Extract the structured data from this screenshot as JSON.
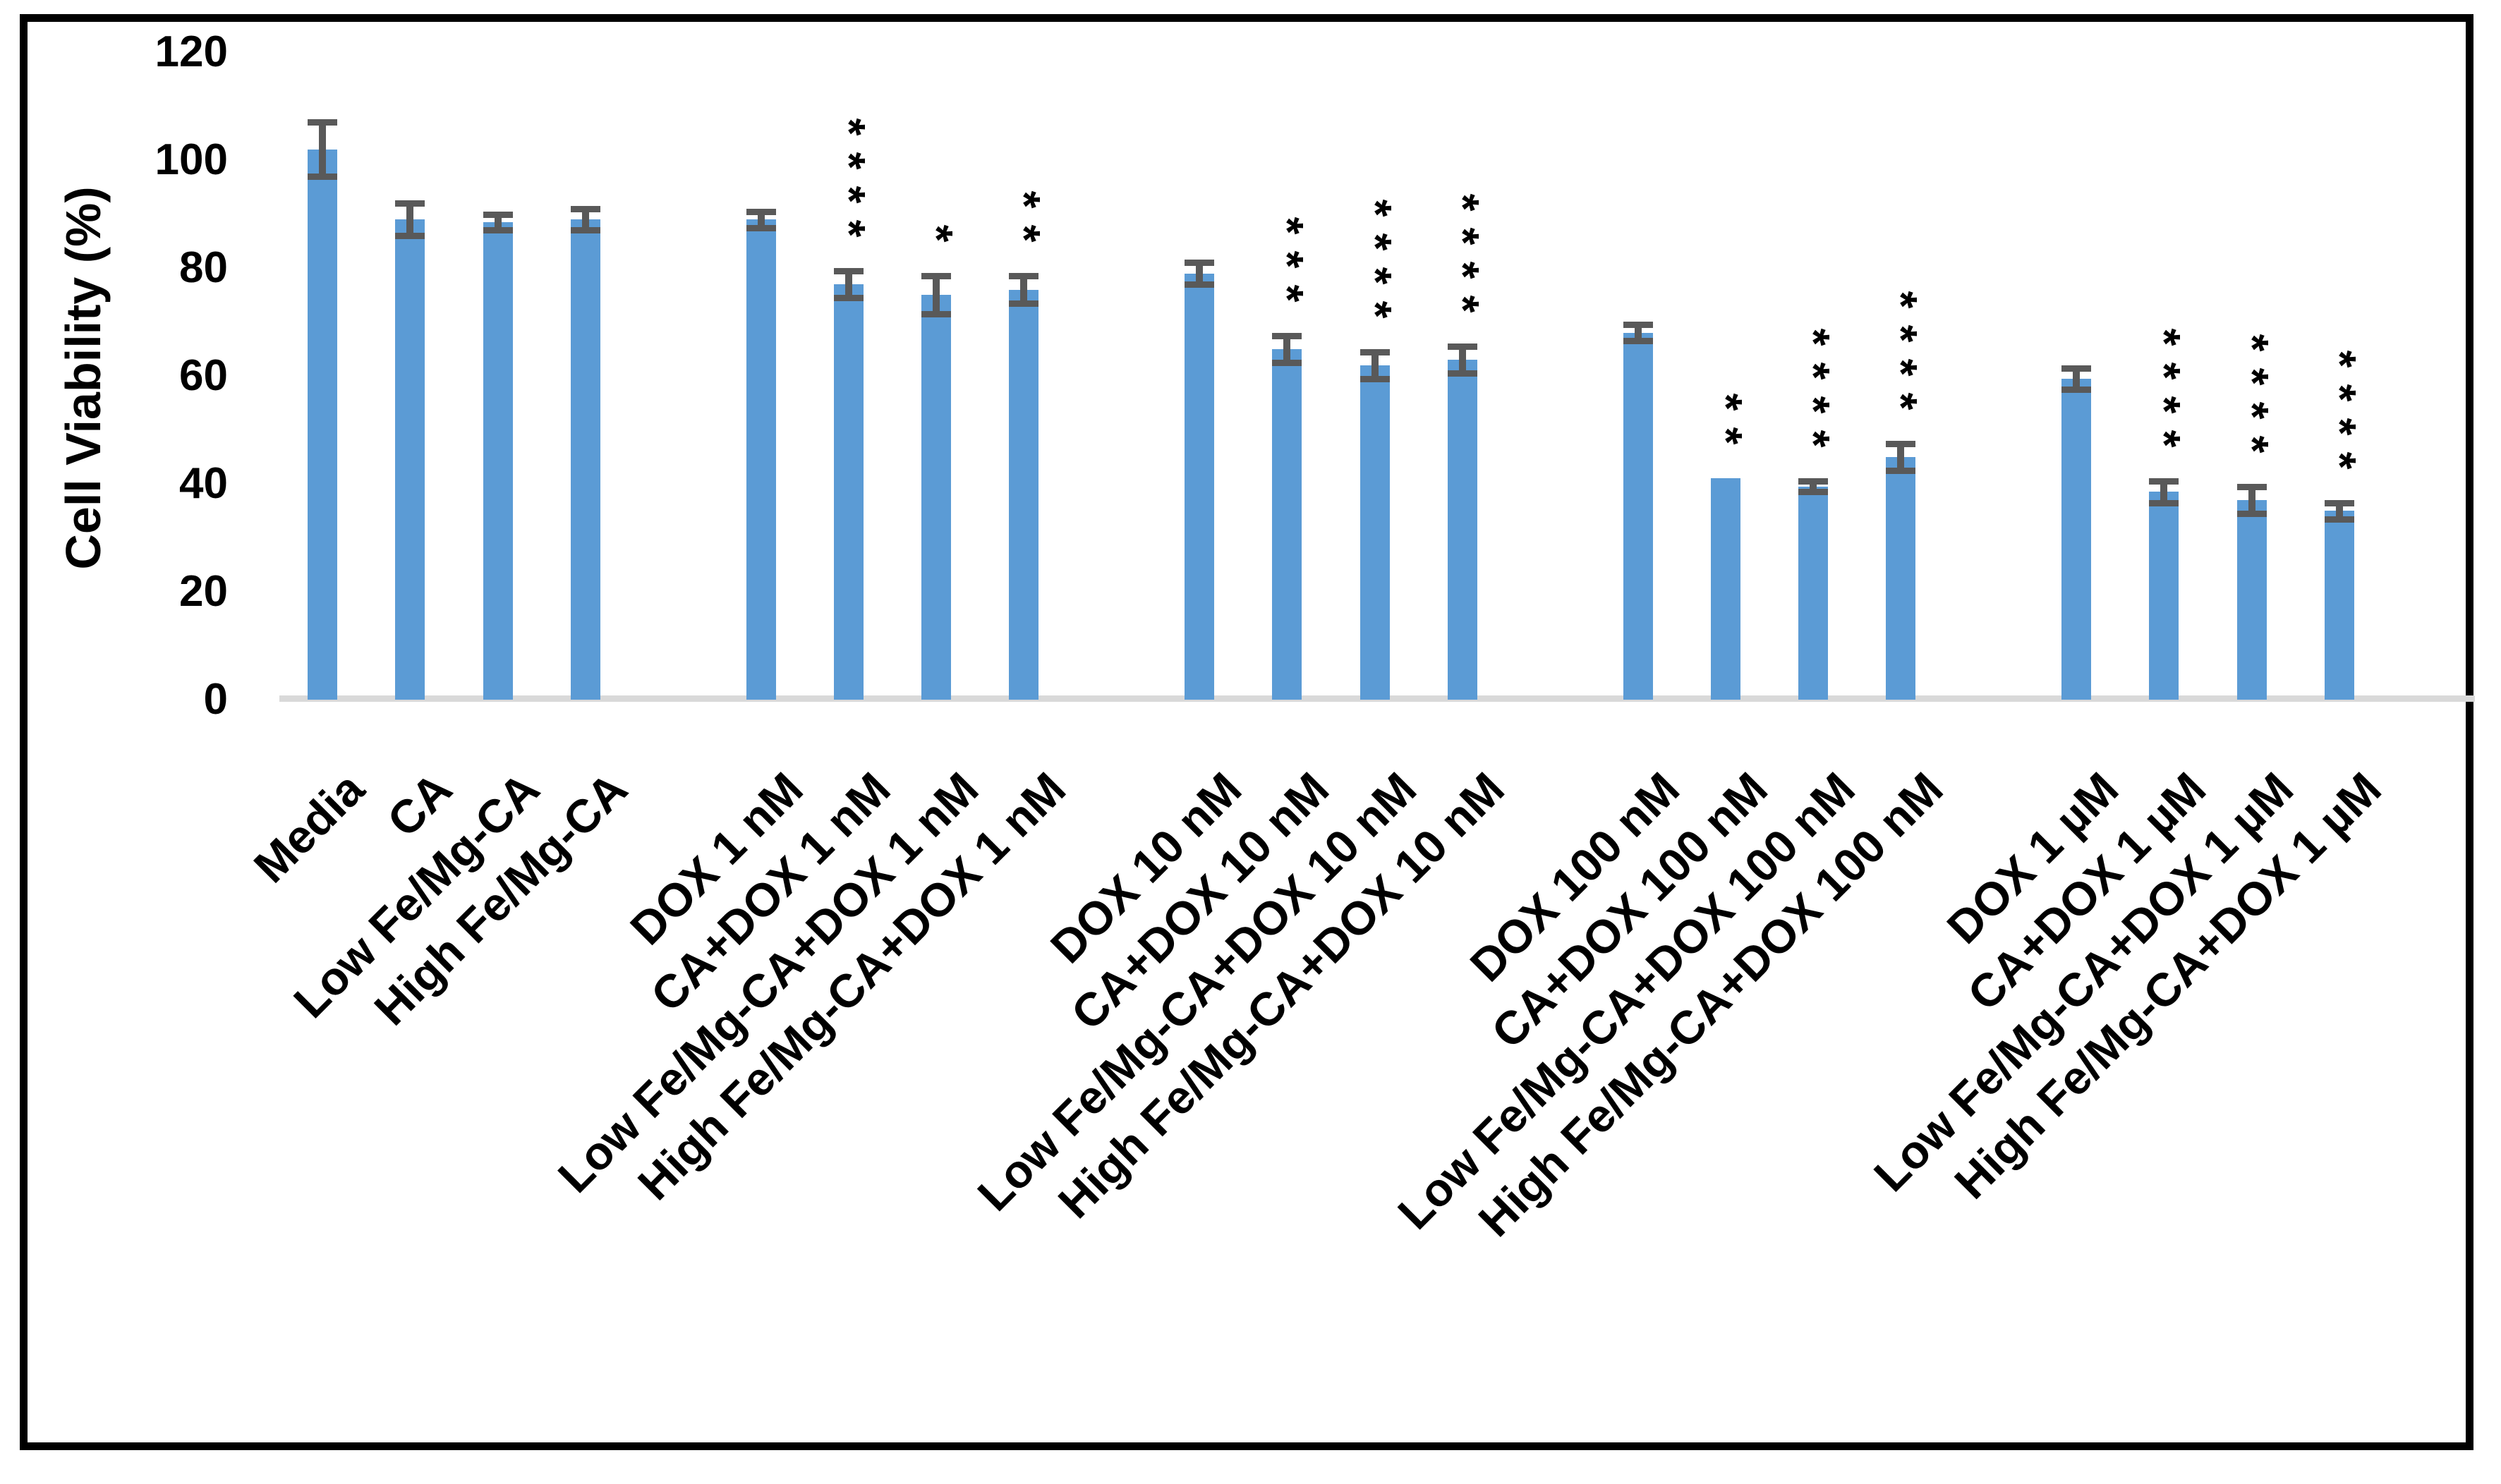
{
  "chart_data": {
    "type": "bar",
    "title": "",
    "xlabel": "",
    "ylabel": "Cell Viability (%)",
    "ylim": [
      0,
      120
    ],
    "yticks": [
      0,
      20,
      40,
      60,
      80,
      100,
      120
    ],
    "grid": "off",
    "legend": "none",
    "bar_color": "#5B9BD5",
    "error_bar_color": "#595959",
    "baseline_color": "#D9D9D9",
    "significance_symbol": "*",
    "groups": [
      {
        "name": "controls",
        "bars": [
          {
            "label": "Media",
            "value": 102,
            "error": 5,
            "stars": ""
          },
          {
            "label": "CA",
            "value": 89,
            "error": 3,
            "stars": ""
          },
          {
            "label": "Low Fe/Mg-CA",
            "value": 88.5,
            "error": 1.5,
            "stars": ""
          },
          {
            "label": "High Fe/Mg-CA",
            "value": 89,
            "error": 2,
            "stars": ""
          }
        ]
      },
      {
        "name": "dox-1nM",
        "bars": [
          {
            "label": "DOX 1 nM",
            "value": 89,
            "error": 1.5,
            "stars": ""
          },
          {
            "label": "CA+DOX 1 nM",
            "value": 77,
            "error": 2.5,
            "stars": "****"
          },
          {
            "label": "Low Fe/Mg-CA+DOX 1 nM",
            "value": 75,
            "error": 3.5,
            "stars": "*"
          },
          {
            "label": "High Fe/Mg-CA+DOX 1 nM",
            "value": 76,
            "error": 2.5,
            "stars": "**"
          }
        ]
      },
      {
        "name": "dox-10nM",
        "bars": [
          {
            "label": "DOX 10 nM",
            "value": 79,
            "error": 2,
            "stars": ""
          },
          {
            "label": "CA+DOX 10 nM",
            "value": 65,
            "error": 2.5,
            "stars": "***"
          },
          {
            "label": "Low Fe/Mg-CA+DOX 10 nM",
            "value": 62,
            "error": 2.5,
            "stars": "****"
          },
          {
            "label": "High Fe/Mg-CA+DOX 10 nM",
            "value": 63,
            "error": 2.5,
            "stars": "****"
          }
        ]
      },
      {
        "name": "dox-100nM",
        "bars": [
          {
            "label": "DOX 100 nM",
            "value": 68,
            "error": 1.5,
            "stars": ""
          },
          {
            "label": "CA+DOX 100 nM",
            "value": 41,
            "error": 0,
            "stars": "**"
          },
          {
            "label": "Low Fe/Mg-CA+DOX 100 nM",
            "value": 39.5,
            "error": 1,
            "stars": "****"
          },
          {
            "label": "High Fe/Mg-CA+DOX 100 nM",
            "value": 45,
            "error": 2.5,
            "stars": "****"
          }
        ]
      },
      {
        "name": "dox-1uM",
        "bars": [
          {
            "label": "DOX 1 µM",
            "value": 59.5,
            "error": 2,
            "stars": ""
          },
          {
            "label": "CA+DOX 1 µM",
            "value": 38.5,
            "error": 2,
            "stars": "****"
          },
          {
            "label": "Low Fe/Mg-CA+DOX 1 µM",
            "value": 37,
            "error": 2.5,
            "stars": "****"
          },
          {
            "label": "High Fe/Mg-CA+DOX 1 µM",
            "value": 35,
            "error": 1.5,
            "stars": "****"
          }
        ]
      }
    ]
  }
}
